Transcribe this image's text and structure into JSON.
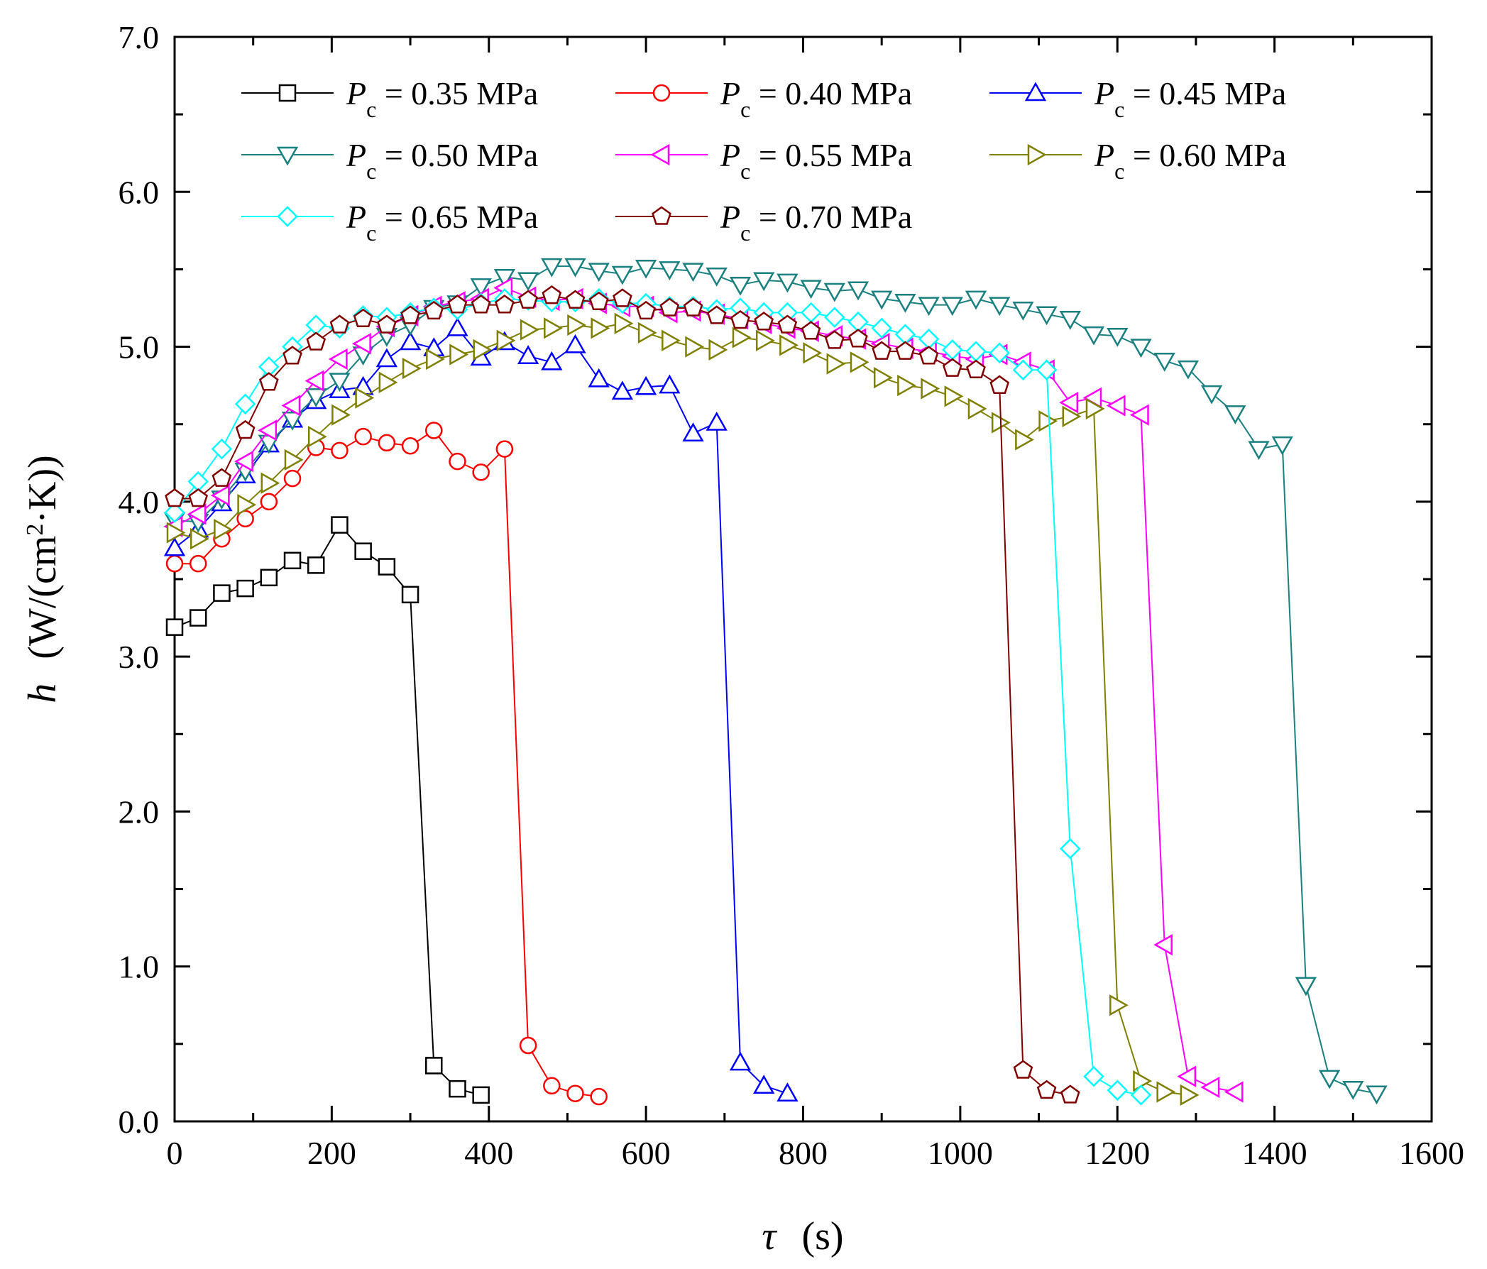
{
  "chart_data": {
    "type": "line",
    "x_label": {
      "symbol": "τ",
      "unit": "(s)"
    },
    "y_label": {
      "symbol": "h",
      "unit_before_sup": "(W/(cm",
      "sup": "2",
      "unit_after_sup": "·K))"
    },
    "xlim": [
      0,
      1600
    ],
    "ylim": [
      0,
      7.0
    ],
    "x_ticks": [
      0,
      200,
      400,
      600,
      800,
      1000,
      1200,
      1400,
      1600
    ],
    "x_tick_labels": [
      "0",
      "200",
      "400",
      "600",
      "800",
      "1000",
      "1200",
      "1400",
      "1600"
    ],
    "y_ticks": [
      0,
      1,
      2,
      3,
      4,
      5,
      6,
      7
    ],
    "y_tick_labels": [
      "0.0",
      "1.0",
      "2.0",
      "3.0",
      "4.0",
      "5.0",
      "6.0",
      "7.0"
    ],
    "grid": false,
    "legend_position": "top-left",
    "legend_columns": 3,
    "series": [
      {
        "legend": {
          "pre": "P",
          "sub": "c",
          "post": " = 0.35 MPa"
        },
        "color": "#000000",
        "marker": "square",
        "x": [
          0,
          30,
          60,
          90,
          120,
          150,
          180,
          210,
          240,
          270,
          300,
          330,
          360,
          390
        ],
        "y": [
          3.19,
          3.25,
          3.41,
          3.44,
          3.51,
          3.62,
          3.59,
          3.85,
          3.68,
          3.58,
          3.4,
          0.36,
          0.21,
          0.17
        ]
      },
      {
        "legend": {
          "pre": "P",
          "sub": "c",
          "post": " = 0.40 MPa"
        },
        "color": "#ff0000",
        "marker": "circle",
        "x": [
          0,
          30,
          60,
          90,
          120,
          150,
          180,
          210,
          240,
          270,
          300,
          330,
          360,
          390,
          420,
          450,
          480,
          510,
          540
        ],
        "y": [
          3.6,
          3.6,
          3.76,
          3.89,
          4.0,
          4.15,
          4.35,
          4.33,
          4.42,
          4.38,
          4.36,
          4.46,
          4.26,
          4.19,
          4.34,
          0.49,
          0.23,
          0.18,
          0.16
        ]
      },
      {
        "legend": {
          "pre": "P",
          "sub": "c",
          "post": " = 0.45 MPa"
        },
        "color": "#0000ff",
        "marker": "triangle-up",
        "x": [
          0,
          30,
          60,
          90,
          120,
          150,
          180,
          210,
          240,
          270,
          300,
          330,
          360,
          390,
          420,
          450,
          480,
          510,
          540,
          570,
          600,
          630,
          660,
          690,
          720,
          750,
          780
        ],
        "y": [
          3.7,
          3.82,
          3.99,
          4.17,
          4.37,
          4.53,
          4.65,
          4.72,
          4.74,
          4.92,
          5.03,
          4.99,
          5.12,
          4.93,
          5.03,
          4.94,
          4.9,
          5.01,
          4.79,
          4.71,
          4.74,
          4.75,
          4.44,
          4.51,
          0.38,
          0.23,
          0.18
        ]
      },
      {
        "legend": {
          "pre": "P",
          "sub": "c",
          "post": " = 0.50 MPa"
        },
        "color": "#1a8080",
        "marker": "triangle-down",
        "x": [
          0,
          30,
          60,
          90,
          120,
          150,
          180,
          210,
          240,
          270,
          300,
          330,
          360,
          390,
          420,
          450,
          480,
          510,
          540,
          570,
          600,
          630,
          660,
          690,
          720,
          750,
          780,
          810,
          840,
          870,
          900,
          930,
          960,
          990,
          1020,
          1050,
          1080,
          1110,
          1140,
          1170,
          1200,
          1230,
          1260,
          1290,
          1320,
          1350,
          1380,
          1410,
          1440,
          1470,
          1500,
          1530
        ],
        "y": [
          3.88,
          3.87,
          4.02,
          4.2,
          4.38,
          4.53,
          4.68,
          4.78,
          4.95,
          5.07,
          5.14,
          5.25,
          5.28,
          5.39,
          5.45,
          5.43,
          5.52,
          5.52,
          5.49,
          5.47,
          5.51,
          5.5,
          5.49,
          5.46,
          5.4,
          5.43,
          5.42,
          5.38,
          5.36,
          5.37,
          5.31,
          5.29,
          5.27,
          5.27,
          5.31,
          5.27,
          5.24,
          5.21,
          5.18,
          5.08,
          5.07,
          5.0,
          4.91,
          4.86,
          4.7,
          4.57,
          4.34,
          4.37,
          0.88,
          0.28,
          0.21,
          0.18
        ]
      },
      {
        "legend": {
          "pre": "P",
          "sub": "c",
          "post": " = 0.55 MPa"
        },
        "color": "#ff00ff",
        "marker": "triangle-left",
        "x": [
          0,
          30,
          60,
          90,
          120,
          150,
          180,
          210,
          240,
          270,
          300,
          330,
          360,
          390,
          420,
          450,
          480,
          510,
          540,
          570,
          600,
          630,
          660,
          690,
          720,
          750,
          780,
          810,
          840,
          870,
          900,
          930,
          960,
          990,
          1020,
          1050,
          1080,
          1110,
          1140,
          1170,
          1200,
          1230,
          1260,
          1290,
          1320,
          1350
        ],
        "y": [
          3.84,
          3.92,
          4.04,
          4.26,
          4.46,
          4.62,
          4.78,
          4.92,
          5.02,
          5.13,
          5.2,
          5.26,
          5.29,
          5.31,
          5.38,
          5.32,
          5.3,
          5.31,
          5.28,
          5.26,
          5.26,
          5.22,
          5.23,
          5.21,
          5.18,
          5.15,
          5.12,
          5.1,
          5.07,
          5.05,
          5.02,
          4.99,
          4.97,
          4.94,
          4.92,
          4.95,
          4.9,
          4.85,
          4.64,
          4.67,
          4.62,
          4.56,
          1.14,
          0.29,
          0.22,
          0.19
        ]
      },
      {
        "legend": {
          "pre": "P",
          "sub": "c",
          "post": " = 0.60 MPa"
        },
        "color": "#808000",
        "marker": "triangle-right",
        "x": [
          0,
          30,
          60,
          90,
          120,
          150,
          180,
          210,
          240,
          270,
          300,
          330,
          360,
          390,
          420,
          450,
          480,
          510,
          540,
          570,
          600,
          630,
          660,
          690,
          720,
          750,
          780,
          810,
          840,
          870,
          900,
          930,
          960,
          990,
          1020,
          1050,
          1080,
          1110,
          1140,
          1170,
          1200,
          1230,
          1260,
          1290
        ],
        "y": [
          3.8,
          3.76,
          3.82,
          3.98,
          4.12,
          4.27,
          4.42,
          4.56,
          4.67,
          4.77,
          4.86,
          4.92,
          4.95,
          4.98,
          5.04,
          5.11,
          5.12,
          5.14,
          5.12,
          5.15,
          5.09,
          5.04,
          5.0,
          4.98,
          5.06,
          5.04,
          5.01,
          4.96,
          4.89,
          4.9,
          4.8,
          4.75,
          4.73,
          4.68,
          4.6,
          4.51,
          4.4,
          4.52,
          4.55,
          4.6,
          0.75,
          0.26,
          0.19,
          0.17
        ]
      },
      {
        "legend": {
          "pre": "P",
          "sub": "c",
          "post": " = 0.65 MPa"
        },
        "color": "#00ffff",
        "marker": "diamond",
        "x": [
          0,
          30,
          60,
          90,
          120,
          150,
          180,
          210,
          240,
          270,
          300,
          330,
          360,
          390,
          420,
          450,
          480,
          510,
          540,
          570,
          600,
          630,
          660,
          690,
          720,
          750,
          780,
          810,
          840,
          870,
          900,
          930,
          960,
          990,
          1020,
          1050,
          1080,
          1110,
          1140,
          1170,
          1200,
          1230
        ],
        "y": [
          3.93,
          4.13,
          4.34,
          4.63,
          4.87,
          5.0,
          5.14,
          5.12,
          5.2,
          5.19,
          5.22,
          5.25,
          5.24,
          5.28,
          5.31,
          5.3,
          5.29,
          5.29,
          5.31,
          5.28,
          5.28,
          5.26,
          5.26,
          5.24,
          5.25,
          5.22,
          5.22,
          5.22,
          5.19,
          5.16,
          5.12,
          5.08,
          5.05,
          4.98,
          4.97,
          4.96,
          4.85,
          4.85,
          1.76,
          0.29,
          0.2,
          0.17
        ]
      },
      {
        "legend": {
          "pre": "P",
          "sub": "c",
          "post": " = 0.70 MPa"
        },
        "color": "#800000",
        "marker": "pentagon",
        "x": [
          0,
          30,
          60,
          90,
          120,
          150,
          180,
          210,
          240,
          270,
          300,
          330,
          360,
          390,
          420,
          450,
          480,
          510,
          540,
          570,
          600,
          630,
          660,
          690,
          720,
          750,
          780,
          810,
          840,
          870,
          900,
          930,
          960,
          990,
          1020,
          1050,
          1080,
          1110,
          1140
        ],
        "y": [
          4.02,
          4.02,
          4.15,
          4.46,
          4.77,
          4.94,
          5.03,
          5.14,
          5.18,
          5.14,
          5.2,
          5.23,
          5.27,
          5.27,
          5.27,
          5.3,
          5.33,
          5.3,
          5.29,
          5.31,
          5.23,
          5.25,
          5.25,
          5.2,
          5.17,
          5.16,
          5.14,
          5.1,
          5.04,
          5.05,
          4.97,
          4.97,
          4.94,
          4.86,
          4.85,
          4.75,
          0.33,
          0.2,
          0.17
        ]
      }
    ]
  }
}
